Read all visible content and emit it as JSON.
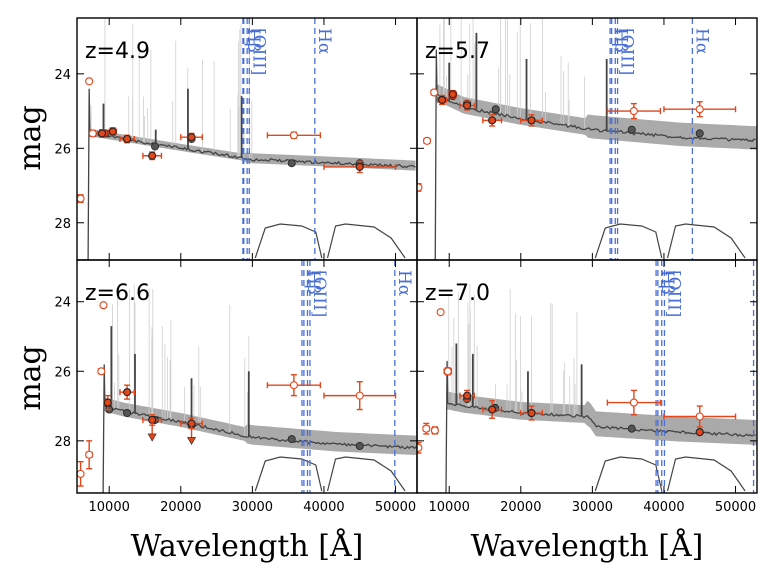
{
  "chart_data": {
    "type": "scatter",
    "layout": "2x2 panels sharing axes",
    "xlabel": "Wavelength [Å]",
    "ylabel": "mag",
    "xlim": [
      5500,
      53000
    ],
    "xticks": [
      10000,
      20000,
      30000,
      40000,
      50000
    ],
    "x_tick_labels": [
      "10000",
      "20000",
      "30000",
      "40000",
      "50000"
    ],
    "y_inverted": true,
    "line_color": "#4a6fd6",
    "phot_color": "#e2461b",
    "model_color": "#444444",
    "band_color": "#aaaaaa",
    "panels": [
      {
        "label": "z=4.9",
        "ylim": [
          22.5,
          29.0
        ],
        "yticks": [
          24,
          26,
          28
        ],
        "y_tick_labels": [
          "24",
          "26",
          "28"
        ],
        "lines": [
          {
            "name": "Hβ",
            "wavelength": [
              28682,
              28800
            ]
          },
          {
            "name": "[OIII]",
            "wavelength": [
              29271,
              29565
            ]
          },
          {
            "name": "Hα",
            "wavelength": [
              38725
            ]
          }
        ],
        "break": 7200,
        "continuum": [
          [
            7200,
            25.6
          ],
          [
            12000,
            25.75
          ],
          [
            20000,
            26.0
          ],
          [
            30000,
            26.3
          ],
          [
            42000,
            26.4
          ],
          [
            53000,
            26.5
          ]
        ],
        "spikes": [
          [
            9200,
            24.8
          ],
          [
            16500,
            25.5
          ],
          [
            21000,
            24.4
          ],
          [
            28500,
            24.6
          ]
        ],
        "band_halfwidth": 0.12,
        "model_points": [
          [
            9500,
            25.6
          ],
          [
            12500,
            25.75
          ],
          [
            16400,
            25.95
          ],
          [
            21500,
            25.75
          ],
          [
            35500,
            26.4
          ],
          [
            45000,
            26.4
          ]
        ],
        "photometry": [
          {
            "x": 6000,
            "y": 27.35,
            "xerr": 300,
            "yerr": 0.1,
            "filled": false
          },
          {
            "x": 7200,
            "y": 24.2,
            "xerr": 0,
            "yerr": 0,
            "filled": false
          },
          {
            "x": 7700,
            "y": 25.6,
            "xerr": 400,
            "yerr": 0.08,
            "filled": false
          },
          {
            "x": 9000,
            "y": 25.6,
            "xerr": 600,
            "yerr": 0.1,
            "filled": true
          },
          {
            "x": 10500,
            "y": 25.55,
            "xerr": 500,
            "yerr": 0.1,
            "filled": true
          },
          {
            "x": 12500,
            "y": 25.75,
            "xerr": 1000,
            "yerr": 0.1,
            "filled": true
          },
          {
            "x": 16000,
            "y": 26.2,
            "xerr": 1300,
            "yerr": 0.1,
            "filled": true
          },
          {
            "x": 21500,
            "y": 25.7,
            "xerr": 1500,
            "yerr": 0.1,
            "filled": true
          },
          {
            "x": 35800,
            "y": 25.65,
            "xerr": 3700,
            "yerr": 0.08,
            "filled": false
          },
          {
            "x": 45000,
            "y": 26.5,
            "xerr": 5000,
            "yerr": 0.15,
            "filled": true
          }
        ]
      },
      {
        "label": "z=5.7",
        "ylim": [
          22.5,
          29.0
        ],
        "yticks": [
          24,
          26,
          28
        ],
        "y_tick_labels": [
          "24",
          "26",
          "28"
        ],
        "lines": [
          {
            "name": "Hβ",
            "wavelength": [
              32480,
              32700
            ]
          },
          {
            "name": "[OIII]",
            "wavelength": [
              33200,
              33520
            ]
          },
          {
            "name": "Hα",
            "wavelength": [
              43975
            ]
          }
        ],
        "break": 8200,
        "continuum": [
          [
            8200,
            24.55
          ],
          [
            12000,
            24.9
          ],
          [
            20000,
            25.2
          ],
          [
            30000,
            25.5
          ],
          [
            42000,
            25.7
          ],
          [
            53000,
            25.8
          ]
        ],
        "spikes": [
          [
            10000,
            23.7
          ],
          [
            13800,
            22.9
          ],
          [
            20800,
            23.6
          ],
          [
            32000,
            23.6
          ]
        ],
        "band_halfwidth": 0.28,
        "model_points": [
          [
            9000,
            24.7
          ],
          [
            10500,
            24.6
          ],
          [
            12500,
            24.8
          ],
          [
            16500,
            24.95
          ],
          [
            21500,
            25.25
          ],
          [
            35500,
            25.5
          ],
          [
            45000,
            25.6
          ]
        ],
        "photometry": [
          {
            "x": 5700,
            "y": 27.05,
            "xerr": 200,
            "yerr": 0.1,
            "filled": false
          },
          {
            "x": 6900,
            "y": 25.8,
            "xerr": 400,
            "yerr": 0.05,
            "filled": false
          },
          {
            "x": 7900,
            "y": 24.5,
            "xerr": 400,
            "yerr": 0.05,
            "filled": false
          },
          {
            "x": 9000,
            "y": 24.7,
            "xerr": 600,
            "yerr": 0.12,
            "filled": true
          },
          {
            "x": 10500,
            "y": 24.55,
            "xerr": 500,
            "yerr": 0.1,
            "filled": true
          },
          {
            "x": 12500,
            "y": 24.85,
            "xerr": 1000,
            "yerr": 0.12,
            "filled": true
          },
          {
            "x": 16000,
            "y": 25.25,
            "xerr": 1300,
            "yerr": 0.15,
            "filled": true
          },
          {
            "x": 21500,
            "y": 25.25,
            "xerr": 1500,
            "yerr": 0.15,
            "filled": true
          },
          {
            "x": 35800,
            "y": 25.0,
            "xerr": 3700,
            "yerr": 0.2,
            "filled": false
          },
          {
            "x": 45000,
            "y": 24.95,
            "xerr": 5000,
            "yerr": 0.2,
            "filled": false
          }
        ]
      },
      {
        "label": "z=6.6",
        "ylim": [
          22.8,
          29.5
        ],
        "yticks": [
          24,
          26,
          28
        ],
        "y_tick_labels": [
          "24",
          "26",
          "28"
        ],
        "lines": [
          {
            "name": "Hβ",
            "wavelength": [
              36930,
              37200
            ]
          },
          {
            "name": "[OIII]",
            "wavelength": [
              37700,
              38040
            ]
          },
          {
            "name": "Hα",
            "wavelength": [
              49900
            ]
          }
        ],
        "break": 9300,
        "continuum": [
          [
            9300,
            27.0
          ],
          [
            12000,
            27.15
          ],
          [
            20000,
            27.45
          ],
          [
            30000,
            27.9
          ],
          [
            42000,
            28.1
          ],
          [
            53000,
            28.2
          ]
        ],
        "spikes": [
          [
            10300,
            24.7
          ],
          [
            13600,
            25.5
          ],
          [
            21500,
            26.2
          ],
          [
            29500,
            26.0
          ]
        ],
        "band_halfwidth": 0.25,
        "model_points": [
          [
            10000,
            27.1
          ],
          [
            12500,
            27.2
          ],
          [
            16400,
            27.4
          ],
          [
            21500,
            27.55
          ],
          [
            35500,
            27.95
          ],
          [
            45000,
            28.15
          ]
        ],
        "photometry": [
          {
            "x": 6000,
            "y": 28.95,
            "xerr": 200,
            "yerr": 0.35,
            "filled": false
          },
          {
            "x": 7200,
            "y": 28.4,
            "xerr": 400,
            "yerr": 0.4,
            "filled": false
          },
          {
            "x": 8900,
            "y": 26.0,
            "xerr": 400,
            "yerr": 0.05,
            "filled": false
          },
          {
            "x": 9200,
            "y": 24.1,
            "xerr": 0,
            "yerr": 0,
            "filled": false
          },
          {
            "x": 9800,
            "y": 26.9,
            "xerr": 500,
            "yerr": 0.2,
            "filled": true
          },
          {
            "x": 12500,
            "y": 26.6,
            "xerr": 1000,
            "yerr": 0.2,
            "filled": true
          },
          {
            "x": 16000,
            "y": 27.4,
            "xerr": 1300,
            "yerr": 0.15,
            "filled": true
          },
          {
            "x": 21500,
            "y": 27.5,
            "xerr": 1500,
            "yerr": 0.15,
            "filled": true
          },
          {
            "x": 35800,
            "y": 26.4,
            "xerr": 3700,
            "yerr": 0.3,
            "filled": false
          },
          {
            "x": 45000,
            "y": 26.7,
            "xerr": 5000,
            "yerr": 0.4,
            "filled": false
          }
        ],
        "upper_limits": [
          16000,
          21500
        ]
      },
      {
        "label": "z=7.0",
        "ylim": [
          22.8,
          29.5
        ],
        "yticks": [
          24,
          26,
          28
        ],
        "y_tick_labels": [
          "24",
          "26",
          "28"
        ],
        "lines": [
          {
            "name": "Hβ",
            "wavelength": [
              38900,
              39150
            ]
          },
          {
            "name": "[OIII]",
            "wavelength": [
              39690,
              40070
            ]
          },
          {
            "name": "Hα",
            "wavelength": [
              52520
            ]
          }
        ],
        "break": 9700,
        "continuum": [
          [
            9700,
            26.9
          ],
          [
            12000,
            27.0
          ],
          [
            20000,
            27.2
          ],
          [
            29500,
            27.3
          ],
          [
            30500,
            27.6
          ],
          [
            42000,
            27.75
          ],
          [
            53000,
            27.85
          ]
        ],
        "spikes": [
          [
            11000,
            25.2
          ],
          [
            13300,
            25.5
          ],
          [
            21000,
            26.0
          ],
          [
            28500,
            25.8
          ]
        ],
        "band_halfwidth": 0.32,
        "model_points": [
          [
            12500,
            26.8
          ],
          [
            16400,
            27.05
          ],
          [
            21500,
            27.2
          ],
          [
            35500,
            27.65
          ],
          [
            45000,
            27.75
          ]
        ],
        "photometry": [
          {
            "x": 5700,
            "y": 28.2,
            "xerr": 200,
            "yerr": 0.15,
            "filled": false
          },
          {
            "x": 6800,
            "y": 27.65,
            "xerr": 400,
            "yerr": 0.15,
            "filled": false
          },
          {
            "x": 8000,
            "y": 27.7,
            "xerr": 400,
            "yerr": 0.1,
            "filled": false
          },
          {
            "x": 8800,
            "y": 24.3,
            "xerr": 0,
            "yerr": 0,
            "filled": false
          },
          {
            "x": 9800,
            "y": 26.0,
            "xerr": 500,
            "yerr": 0.1,
            "filled": false
          },
          {
            "x": 12500,
            "y": 26.7,
            "xerr": 1000,
            "yerr": 0.15,
            "filled": true
          },
          {
            "x": 16000,
            "y": 27.1,
            "xerr": 1300,
            "yerr": 0.25,
            "filled": true
          },
          {
            "x": 21500,
            "y": 27.2,
            "xerr": 1500,
            "yerr": 0.2,
            "filled": true
          },
          {
            "x": 35800,
            "y": 26.9,
            "xerr": 3700,
            "yerr": 0.35,
            "filled": false
          },
          {
            "x": 45000,
            "y": 27.3,
            "xerr": 5000,
            "yerr": 0.3,
            "filled": false
          },
          {
            "x": 45000,
            "y": 27.75,
            "xerr": 0,
            "yerr": 0,
            "filled": true
          }
        ]
      }
    ]
  }
}
